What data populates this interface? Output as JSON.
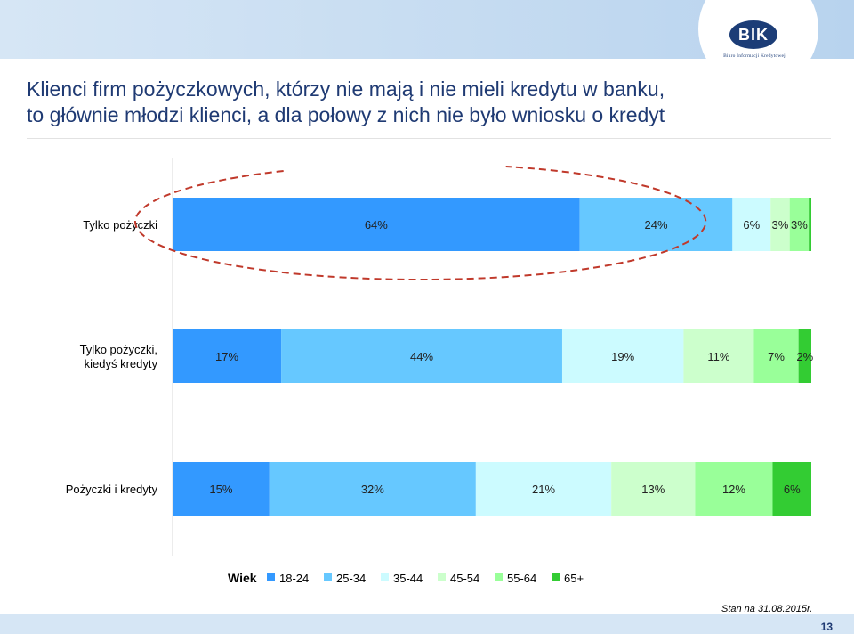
{
  "header": {
    "logo_text": "BIK",
    "logo_subtitle": "Biuro Informacji Kredytowej",
    "title_line1": "Klienci firm pożyczkowych, którzy nie mają i nie mieli kredytu w banku,",
    "title_line2": "to głównie młodzi klienci, a dla połowy z nich nie było wniosku o kredyt"
  },
  "chart_data": {
    "type": "bar",
    "orientation": "horizontal",
    "stacked": true,
    "normalized": true,
    "categories": [
      "Tylko pożyczki",
      "Tylko pożyczki, kiedyś kredyty",
      "Pożyczki i kredyty"
    ],
    "legend_title": "Wiek",
    "legend_position": "bottom",
    "series": [
      {
        "name": "18-24",
        "color": "#3399ff",
        "values": [
          64,
          17,
          15
        ],
        "labels": [
          "64%",
          "17%",
          "15%"
        ]
      },
      {
        "name": "25-34",
        "color": "#66c8ff",
        "values": [
          24,
          44,
          32
        ],
        "labels": [
          "24%",
          "44%",
          "32%"
        ]
      },
      {
        "name": "35-44",
        "color": "#ccfbff",
        "values": [
          6,
          19,
          21
        ],
        "labels": [
          "6%",
          "19%",
          "21%"
        ]
      },
      {
        "name": "45-54",
        "color": "#ccffcc",
        "values": [
          3,
          11,
          13
        ],
        "labels": [
          "3%",
          "11%",
          "13%"
        ]
      },
      {
        "name": "55-64",
        "color": "#99ff99",
        "values": [
          3,
          7,
          12
        ],
        "labels": [
          "3%",
          "7%",
          "12%"
        ]
      },
      {
        "name": "65+",
        "color": "#33cc33",
        "values": [
          0.4,
          2,
          6
        ],
        "labels": [
          "",
          "2%",
          "6%"
        ]
      }
    ],
    "highlight": {
      "category": "Tylko pożyczki",
      "series": [
        "18-24",
        "25-34"
      ],
      "style": "dashed-ellipse",
      "color": "#c0392b"
    }
  },
  "footer": {
    "date_note": "Stan na 31.08.2015r.",
    "page_number": "13"
  }
}
